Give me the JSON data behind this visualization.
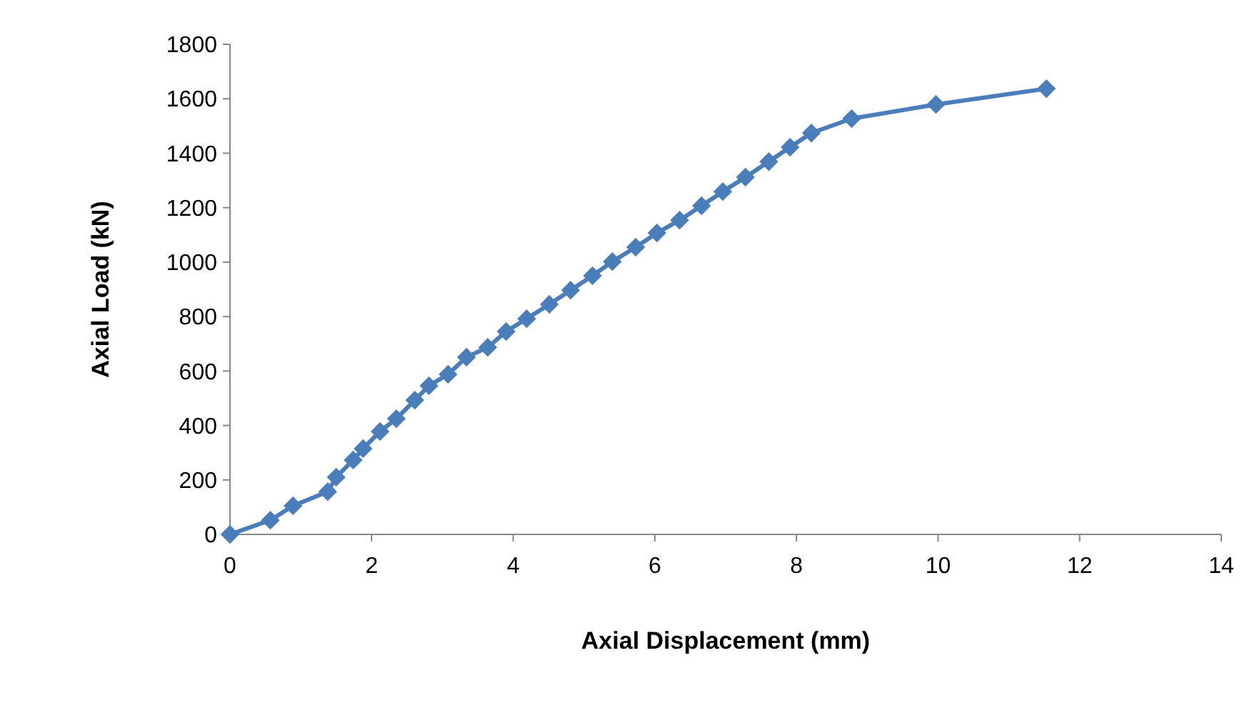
{
  "chart_data": {
    "type": "line",
    "xlabel": "Axial Displacement (mm)",
    "ylabel": "Axial Load (kN)",
    "x": [
      0,
      0.57,
      0.89,
      1.38,
      1.5,
      1.74,
      1.88,
      2.12,
      2.35,
      2.61,
      2.81,
      3.08,
      3.34,
      3.64,
      3.9,
      4.19,
      4.51,
      4.81,
      5.12,
      5.4,
      5.73,
      6.03,
      6.35,
      6.66,
      6.96,
      7.28,
      7.61,
      7.91,
      8.21,
      8.78,
      9.97,
      11.53
    ],
    "series": [
      {
        "color": "#4a7ebb",
        "values": [
          0,
          52,
          105,
          157,
          210,
          273,
          315,
          378,
          425,
          493,
          546,
          588,
          651,
          687,
          745,
          792,
          845,
          897,
          950,
          1002,
          1055,
          1107,
          1154,
          1207,
          1259,
          1312,
          1369,
          1422,
          1474,
          1527,
          1579,
          1637
        ]
      }
    ],
    "xlim": [
      0,
      14
    ],
    "xticks": [
      0,
      2,
      4,
      6,
      8,
      10,
      12,
      14
    ],
    "ylim": [
      0,
      1800
    ],
    "yticks": [
      0,
      200,
      400,
      600,
      800,
      1000,
      1200,
      1400,
      1600,
      1800
    ],
    "marker": "diamond",
    "line_style": "solid",
    "grid": false
  }
}
